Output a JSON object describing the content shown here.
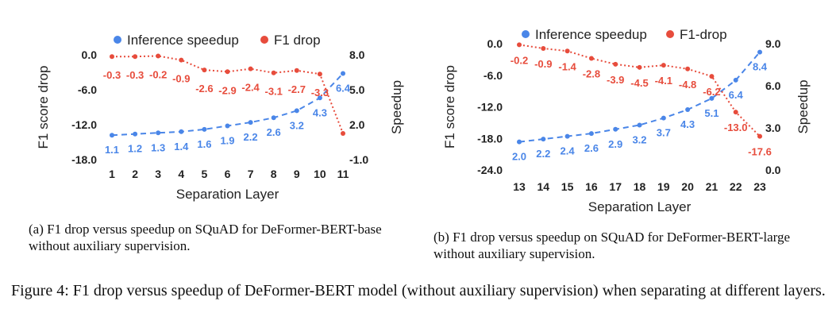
{
  "figure_caption": "Figure 4: F1 drop versus speedup of DeFormer-BERT model (without auxiliary supervision) when separating at different layers.",
  "colors": {
    "speedup": "#4a86e8",
    "f1": "#e74c3c",
    "axis_text": "#000000"
  },
  "chart_data": [
    {
      "type": "line",
      "caption": "(a) F1 drop versus speedup on SQuAD for DeFormer-BERT-base without auxiliary supervision.",
      "xlabel": "Separation Layer",
      "ylabel_left": "F1 score drop",
      "ylabel_right": "Speedup",
      "x": [
        "1",
        "2",
        "3",
        "4",
        "5",
        "6",
        "7",
        "8",
        "9",
        "10",
        "11"
      ],
      "yticks_left": [
        "0.0",
        "-6.0",
        "-12.0",
        "-18.0"
      ],
      "yticks_right": [
        "8.0",
        "5.0",
        "2.0",
        "-1.0"
      ],
      "ylim_left": [
        -18,
        0
      ],
      "ylim_right": [
        -1,
        8
      ],
      "legend": [
        "Inference speedup",
        "F1 drop"
      ],
      "series": [
        {
          "name": "Inference speedup",
          "axis": "right",
          "style": "dashed",
          "values": [
            1.1,
            1.2,
            1.3,
            1.4,
            1.6,
            1.9,
            2.2,
            2.6,
            3.2,
            4.3,
            6.4
          ],
          "labels": [
            "1.1",
            "1.2",
            "1.3",
            "1.4",
            "1.6",
            "1.9",
            "2.2",
            "2.6",
            "3.2",
            "4.3",
            "6.4"
          ]
        },
        {
          "name": "F1 drop",
          "axis": "left",
          "style": "dotted",
          "values": [
            -0.3,
            -0.3,
            -0.2,
            -0.9,
            -2.6,
            -2.9,
            -2.4,
            -3.1,
            -2.7,
            -3.3,
            -13.5
          ],
          "labels": [
            "-0.3",
            "-0.3",
            "-0.2",
            "-0.9",
            "-2.6",
            "-2.9",
            "-2.4",
            "-3.1",
            "-2.7",
            "-3.3",
            ""
          ]
        }
      ]
    },
    {
      "type": "line",
      "caption": "(b) F1 drop versus speedup on SQuAD for DeFormer-BERT-large without auxiliary supervision.",
      "xlabel": "Separation Layer",
      "ylabel_left": "F1 score drop",
      "ylabel_right": "Speedup",
      "x": [
        "13",
        "14",
        "15",
        "16",
        "17",
        "18",
        "19",
        "20",
        "21",
        "22",
        "23"
      ],
      "yticks_left": [
        "0.0",
        "-6.0",
        "-12.0",
        "-18.0",
        "-24.0"
      ],
      "yticks_right": [
        "9.0",
        "6.0",
        "3.0",
        "0.0"
      ],
      "ylim_left": [
        -24,
        0
      ],
      "ylim_right": [
        0,
        9
      ],
      "legend": [
        "Inference speedup",
        "F1-drop"
      ],
      "series": [
        {
          "name": "Inference speedup",
          "axis": "right",
          "style": "dashed",
          "values": [
            2.0,
            2.2,
            2.4,
            2.6,
            2.9,
            3.2,
            3.7,
            4.3,
            5.1,
            6.4,
            8.4
          ],
          "labels": [
            "2.0",
            "2.2",
            "2.4",
            "2.6",
            "2.9",
            "3.2",
            "3.7",
            "4.3",
            "5.1",
            "6.4",
            "8.4"
          ]
        },
        {
          "name": "F1-drop",
          "axis": "left",
          "style": "dotted",
          "values": [
            -0.2,
            -0.9,
            -1.4,
            -2.8,
            -3.9,
            -4.5,
            -4.1,
            -4.8,
            -6.2,
            -13.0,
            -17.6
          ],
          "labels": [
            "-0.2",
            "-0.9",
            "-1.4",
            "-2.8",
            "-3.9",
            "-4.5",
            "-4.1",
            "-4.8",
            "-6.2",
            "-13.0",
            "-17.6"
          ]
        }
      ]
    }
  ]
}
